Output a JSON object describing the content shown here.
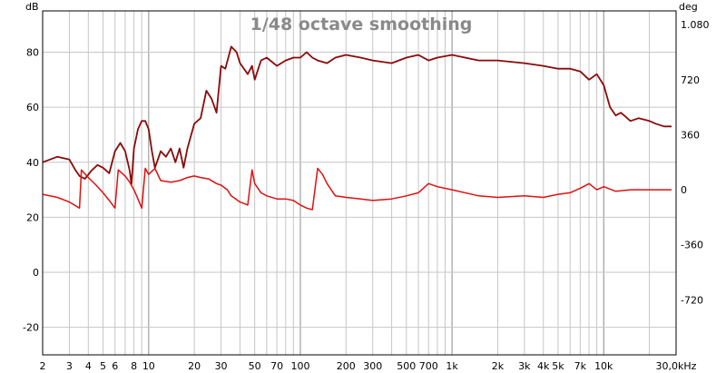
{
  "chart_data": {
    "type": "line",
    "title": "1/48 octave smoothing",
    "left_unit": "dB",
    "right_unit": "deg",
    "x_scale": "log",
    "xlim": [
      2,
      30000
    ],
    "ylim_left": [
      -30,
      95
    ],
    "ylim_right": [
      -1080,
      1170
    ],
    "grid": true,
    "left_ticks": [
      80,
      60,
      40,
      20,
      0,
      -20
    ],
    "left_tick_labels": [
      "80",
      "60",
      "40",
      "20",
      "0",
      "-20"
    ],
    "right_ticks": [
      1080,
      720,
      360,
      0,
      -360,
      -720
    ],
    "right_tick_labels": [
      "1.080",
      "720",
      "360",
      "0",
      "-360",
      "-720"
    ],
    "x_ticks": [
      2,
      3,
      4,
      5,
      6,
      8,
      10,
      20,
      30,
      50,
      70,
      100,
      200,
      300,
      500,
      700,
      1000,
      2000,
      3000,
      4000,
      5000,
      7000,
      10000,
      30000
    ],
    "x_tick_labels": [
      "2",
      "3",
      "4",
      "5",
      "6",
      "8",
      "10",
      "20",
      "30",
      "50",
      "70",
      "100",
      "200",
      "300",
      "500",
      "700",
      "1k",
      "2k",
      "3k",
      "4k",
      "5k",
      "7k",
      "10k",
      "30,0kHz"
    ],
    "series": [
      {
        "color": "#8b0a0a",
        "axis": "left",
        "style": "solid",
        "x": [
          2,
          2.5,
          3,
          3.3,
          3.5,
          3.8,
          4.2,
          4.6,
          5,
          5.5,
          6,
          6.5,
          7,
          7.5,
          7.7,
          8,
          8.5,
          9,
          9.5,
          10,
          10.5,
          11,
          11.5,
          12,
          13,
          14,
          15,
          16,
          17,
          18,
          20,
          22,
          24,
          26,
          28,
          30,
          32,
          35,
          38,
          40,
          45,
          48,
          50,
          55,
          60,
          70,
          80,
          90,
          100,
          110,
          120,
          130,
          150,
          170,
          200,
          250,
          300,
          400,
          500,
          600,
          700,
          800,
          1000,
          1500,
          2000,
          3000,
          4000,
          5000,
          6000,
          7000,
          8000,
          9000,
          10000,
          11000,
          12000,
          13000,
          15000,
          17000,
          20000,
          22000,
          25000,
          28000
        ],
        "y": [
          40,
          42,
          41,
          37,
          35,
          34,
          37,
          39,
          38,
          36,
          44,
          47,
          44,
          37,
          32,
          45,
          52,
          55,
          55,
          52,
          44,
          38,
          41,
          44,
          42,
          45,
          40,
          45,
          38,
          45,
          54,
          56,
          66,
          63,
          58,
          75,
          74,
          82,
          80,
          76,
          72,
          75,
          70,
          77,
          78,
          75,
          77,
          78,
          78,
          80,
          78,
          77,
          76,
          78,
          79,
          78,
          77,
          76,
          78,
          79,
          77,
          78,
          79,
          77,
          77,
          76,
          75,
          74,
          74,
          73,
          70,
          72,
          68,
          60,
          57,
          58,
          55,
          56,
          55,
          54,
          53,
          53
        ]
      },
      {
        "color": "#e01010",
        "axis": "right",
        "style": "solid",
        "x": [
          2,
          2.5,
          3,
          3.5,
          3.6,
          4,
          4.5,
          5,
          5.5,
          6,
          6.3,
          7,
          7.5,
          8,
          8.5,
          9,
          9.5,
          10,
          11,
          12,
          14,
          16,
          18,
          20,
          22,
          25,
          28,
          30,
          33,
          35,
          40,
          45,
          48,
          50,
          55,
          60,
          70,
          80,
          90,
          100,
          110,
          120,
          130,
          140,
          150,
          170,
          200,
          250,
          300,
          400,
          500,
          600,
          700,
          800,
          1000,
          1500,
          2000,
          3000,
          4000,
          5000,
          6000,
          7000,
          8000,
          9000,
          10000,
          12000,
          15000,
          20000,
          25000,
          28000
        ],
        "y": [
          -30,
          -50,
          -80,
          -120,
          130,
          80,
          30,
          -20,
          -70,
          -120,
          130,
          90,
          50,
          0,
          -60,
          -120,
          140,
          100,
          140,
          60,
          50,
          60,
          80,
          90,
          80,
          70,
          40,
          30,
          0,
          -40,
          -80,
          -100,
          130,
          40,
          -20,
          -40,
          -60,
          -60,
          -70,
          -100,
          -120,
          -130,
          140,
          100,
          40,
          -40,
          -50,
          -60,
          -70,
          -60,
          -40,
          -20,
          40,
          20,
          0,
          -40,
          -50,
          -40,
          -50,
          -30,
          -20,
          10,
          40,
          0,
          20,
          -10,
          0,
          0,
          0,
          0
        ]
      }
    ]
  }
}
